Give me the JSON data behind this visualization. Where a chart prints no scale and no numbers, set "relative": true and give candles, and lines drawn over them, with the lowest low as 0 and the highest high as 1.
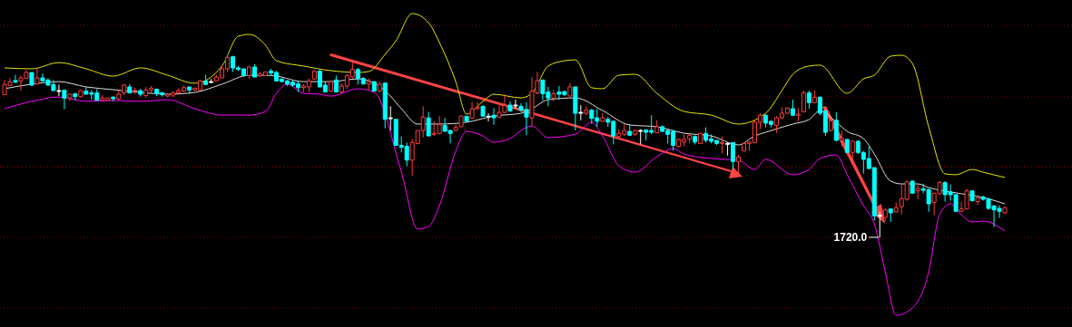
{
  "chart_data": {
    "type": "candlestick",
    "relative": true,
    "categories": [
      null,
      null,
      null,
      null,
      null,
      null,
      null,
      null,
      null,
      null,
      null,
      null,
      null,
      null,
      null,
      null,
      null,
      null,
      null,
      null,
      null,
      null,
      null,
      null,
      null,
      null,
      null,
      null,
      null,
      null,
      null,
      null,
      null,
      null,
      null,
      null,
      null,
      null,
      null,
      null,
      null,
      null,
      null,
      null,
      null,
      null,
      null,
      null,
      null,
      null,
      null,
      null,
      null,
      null,
      null,
      null,
      null,
      null,
      null,
      null,
      null,
      null,
      null,
      null,
      null,
      null,
      null,
      null,
      null,
      null,
      null,
      null,
      null,
      null,
      null,
      null,
      null,
      null,
      null,
      null,
      null,
      null,
      null,
      null,
      null,
      null,
      null,
      null,
      null,
      null,
      null,
      null,
      null,
      null,
      null,
      null,
      null,
      null,
      null,
      null,
      null,
      null,
      null,
      null,
      null,
      null,
      null,
      null,
      null,
      null,
      null,
      null,
      null,
      null,
      null,
      null,
      null,
      null,
      null,
      null,
      null,
      null,
      null,
      null,
      null,
      null,
      null,
      null,
      null,
      null,
      null,
      null,
      null,
      null,
      null,
      null,
      null,
      null,
      null,
      null,
      null,
      null,
      null,
      null,
      null,
      null,
      null,
      null,
      null,
      null,
      null,
      null,
      null,
      null,
      null,
      null,
      null,
      null,
      null,
      null,
      null,
      null,
      null,
      null,
      null,
      null,
      null,
      null,
      null,
      null,
      null,
      null,
      null,
      null,
      null,
      null,
      null,
      null,
      null,
      null,
      null,
      null,
      null,
      null,
      null
    ],
    "ohlc": [
      [
        0.78,
        0.86,
        0.78,
        0.835
      ],
      [
        0.83,
        0.87,
        0.83,
        0.85
      ],
      [
        0.857,
        0.888,
        0.843,
        0.848
      ],
      [
        0.855,
        0.884,
        0.802,
        0.871
      ],
      [
        0.868,
        0.914,
        0.868,
        0.901
      ],
      [
        0.901,
        0.901,
        0.827,
        0.832
      ],
      [
        0.838,
        0.921,
        0.838,
        0.871
      ],
      [
        0.871,
        0.896,
        0.851,
        0.855
      ],
      [
        0.86,
        0.868,
        0.827,
        0.832
      ],
      [
        0.835,
        0.86,
        0.802,
        0.802
      ],
      [
        0.802,
        0.835,
        0.772,
        0.802
      ],
      [
        0.805,
        0.805,
        0.7,
        0.761
      ],
      [
        0.761,
        0.785,
        0.744,
        0.782
      ],
      [
        0.785,
        0.789,
        0.749,
        0.769
      ],
      [
        0.769,
        0.805,
        0.766,
        0.802
      ],
      [
        0.799,
        0.822,
        0.782,
        0.782
      ],
      [
        0.789,
        0.805,
        0.753,
        0.782
      ],
      [
        0.789,
        0.81,
        0.749,
        0.749
      ],
      [
        0.749,
        0.777,
        0.749,
        0.761
      ],
      [
        0.749,
        0.761,
        0.749,
        0.761
      ],
      [
        0.766,
        0.772,
        0.744,
        0.757
      ],
      [
        0.757,
        0.805,
        0.749,
        0.782
      ],
      [
        0.789,
        0.838,
        0.777,
        0.832
      ],
      [
        0.822,
        0.838,
        0.789,
        0.789
      ],
      [
        0.799,
        0.818,
        0.782,
        0.805
      ],
      [
        0.802,
        0.81,
        0.769,
        0.782
      ],
      [
        0.774,
        0.822,
        0.766,
        0.805
      ],
      [
        0.805,
        0.827,
        0.785,
        0.815
      ],
      [
        0.81,
        0.81,
        0.772,
        0.785
      ],
      [
        0.79,
        0.794,
        0.769,
        0.78
      ],
      [
        0.772,
        0.789,
        0.766,
        0.782
      ],
      [
        0.777,
        0.799,
        0.766,
        0.789
      ],
      [
        0.789,
        0.815,
        0.785,
        0.802
      ],
      [
        0.799,
        0.83,
        0.794,
        0.818
      ],
      [
        0.822,
        0.822,
        0.785,
        0.805
      ],
      [
        0.805,
        0.818,
        0.799,
        0.815
      ],
      [
        0.805,
        0.86,
        0.805,
        0.855
      ],
      [
        0.855,
        0.888,
        0.832,
        0.835
      ],
      [
        0.851,
        0.865,
        0.843,
        0.851
      ],
      [
        0.855,
        0.888,
        0.855,
        0.876
      ],
      [
        0.871,
        0.942,
        0.871,
        0.921
      ],
      [
        0.921,
        1,
        0.904,
        0.983
      ],
      [
        0.987,
        0.992,
        0.904,
        0.926
      ],
      [
        0.926,
        0.937,
        0.909,
        0.918
      ],
      [
        0.921,
        0.921,
        0.876,
        0.884
      ],
      [
        0.884,
        0.937,
        0.868,
        0.931
      ],
      [
        0.931,
        0.947,
        0.876,
        0.876
      ],
      [
        0.884,
        0.904,
        0.876,
        0.893
      ],
      [
        0.884,
        0.904,
        0.884,
        0.904
      ],
      [
        0.909,
        0.921,
        0.884,
        0.898
      ],
      [
        0.901,
        0.909,
        0.851,
        0.855
      ],
      [
        0.865,
        0.868,
        0.848,
        0.851
      ],
      [
        0.855,
        0.86,
        0.827,
        0.838
      ],
      [
        0.848,
        0.86,
        0.822,
        0.832
      ],
      [
        0.838,
        0.851,
        0.794,
        0.818
      ],
      [
        0.818,
        0.838,
        0.794,
        0.827
      ],
      [
        0.822,
        0.868,
        0.794,
        0.855
      ],
      [
        0.865,
        0.914,
        0.86,
        0.909
      ],
      [
        0.909,
        0.914,
        0.822,
        0.822
      ],
      [
        0.832,
        0.851,
        0.794,
        0.794
      ],
      [
        0.799,
        0.86,
        0.794,
        0.851
      ],
      [
        0.86,
        0.884,
        0.794,
        0.794
      ],
      [
        0.794,
        0.843,
        0.785,
        0.827
      ],
      [
        0.827,
        0.893,
        0.81,
        0.884
      ],
      [
        0.876,
        0.959,
        0.868,
        0.917
      ],
      [
        0.917,
        0.926,
        0.835,
        0.868
      ],
      [
        0.868,
        0.876,
        0.835,
        0.838
      ],
      [
        0.838,
        0.868,
        0.805,
        0.851
      ],
      [
        0.851,
        0.851,
        0.799,
        0.799
      ],
      [
        0.799,
        0.851,
        0.794,
        0.838
      ],
      [
        0.843,
        0.848,
        0.596,
        0.645
      ],
      [
        0.653,
        0.716,
        0.584,
        0.653
      ],
      [
        0.645,
        0.645,
        0.502,
        0.502
      ],
      [
        0.502,
        0.551,
        0.464,
        0.492
      ],
      [
        0.497,
        0.518,
        0.389,
        0.422
      ],
      [
        0.422,
        0.538,
        0.337,
        0.518
      ],
      [
        0.513,
        0.584,
        0.508,
        0.584
      ],
      [
        0.584,
        0.716,
        0.546,
        0.657
      ],
      [
        0.653,
        0.686,
        0.554,
        0.554
      ],
      [
        0.563,
        0.634,
        0.554,
        0.568
      ],
      [
        0.568,
        0.662,
        0.563,
        0.617
      ],
      [
        0.612,
        0.653,
        0.579,
        0.579
      ],
      [
        0.584,
        0.587,
        0.513,
        0.568
      ],
      [
        0.584,
        0.617,
        0.579,
        0.601
      ],
      [
        0.604,
        0.667,
        0.604,
        0.662
      ],
      [
        0.662,
        0.662,
        0.634,
        0.634
      ],
      [
        0.65,
        0.739,
        0.65,
        0.703
      ],
      [
        0.703,
        0.739,
        0.695,
        0.711
      ],
      [
        0.716,
        0.72,
        0.662,
        0.662
      ],
      [
        0.662,
        0.678,
        0.634,
        0.662
      ],
      [
        0.667,
        0.706,
        0.615,
        0.653
      ],
      [
        0.657,
        0.72,
        0.653,
        0.683
      ],
      [
        0.683,
        0.782,
        0.678,
        0.72
      ],
      [
        0.723,
        0.744,
        0.686,
        0.69
      ],
      [
        0.723,
        0.753,
        0.703,
        0.723
      ],
      [
        0.716,
        0.733,
        0.686,
        0.695
      ],
      [
        0.699,
        0.739,
        0.558,
        0.657
      ],
      [
        0.653,
        0.876,
        0.612,
        0.799
      ],
      [
        0.789,
        0.904,
        0.782,
        0.855
      ],
      [
        0.86,
        0.86,
        0.749,
        0.785
      ],
      [
        0.794,
        0.822,
        0.716,
        0.761
      ],
      [
        0.761,
        0.805,
        0.744,
        0.785
      ],
      [
        0.794,
        0.827,
        0.753,
        0.782
      ],
      [
        0.797,
        0.799,
        0.772,
        0.78
      ],
      [
        0.772,
        0.843,
        0.772,
        0.822
      ],
      [
        0.822,
        0.822,
        0.584,
        0.678
      ],
      [
        0.683,
        0.723,
        0.64,
        0.683
      ],
      [
        0.678,
        0.716,
        0.667,
        0.695
      ],
      [
        0.695,
        0.703,
        0.62,
        0.65
      ],
      [
        0.653,
        0.703,
        0.604,
        0.634
      ],
      [
        0.634,
        0.678,
        0.629,
        0.653
      ],
      [
        0.645,
        0.657,
        0.604,
        0.629
      ],
      [
        0.634,
        0.637,
        0.508,
        0.554
      ],
      [
        0.551,
        0.591,
        0.538,
        0.568
      ],
      [
        0.563,
        0.62,
        0.554,
        0.584
      ],
      [
        0.579,
        0.617,
        0.554,
        0.558
      ],
      [
        0.563,
        0.587,
        0.554,
        0.584
      ],
      [
        0.584,
        0.591,
        0.508,
        0.584
      ],
      [
        0.587,
        0.591,
        0.53,
        0.574
      ],
      [
        0.584,
        0.667,
        0.563,
        0.574
      ],
      [
        0.571,
        0.64,
        0.571,
        0.604
      ],
      [
        0.604,
        0.612,
        0.574,
        0.579
      ],
      [
        0.584,
        0.587,
        0.513,
        0.563
      ],
      [
        0.579,
        0.587,
        0.475,
        0.502
      ],
      [
        0.497,
        0.541,
        0.492,
        0.535
      ],
      [
        0.521,
        0.563,
        0.497,
        0.535
      ],
      [
        0.538,
        0.563,
        0.513,
        0.558
      ],
      [
        0.551,
        0.558,
        0.508,
        0.521
      ],
      [
        0.513,
        0.571,
        0.513,
        0.568
      ],
      [
        0.568,
        0.601,
        0.518,
        0.53
      ],
      [
        0.538,
        0.563,
        0.513,
        0.525
      ],
      [
        0.53,
        0.53,
        0.505,
        0.513
      ],
      [
        0.513,
        0.551,
        0.459,
        0.518
      ],
      [
        0.513,
        0.518,
        0.447,
        0.513
      ],
      [
        0.518,
        0.518,
        0.373,
        0.414
      ],
      [
        0.414,
        0.452,
        0.34,
        0.439
      ],
      [
        0.472,
        0.521,
        0.472,
        0.513
      ],
      [
        0.513,
        0.525,
        0.472,
        0.521
      ],
      [
        0.518,
        0.64,
        0.513,
        0.629
      ],
      [
        0.629,
        0.678,
        0.591,
        0.667
      ],
      [
        0.667,
        0.673,
        0.601,
        0.624
      ],
      [
        0.634,
        0.64,
        0.601,
        0.617
      ],
      [
        0.612,
        0.662,
        0.571,
        0.653
      ],
      [
        0.653,
        0.711,
        0.645,
        0.678
      ],
      [
        0.678,
        0.711,
        0.673,
        0.706
      ],
      [
        0.703,
        0.752,
        0.662,
        0.667
      ],
      [
        0.667,
        0.706,
        0.634,
        0.673
      ],
      [
        0.686,
        0.802,
        0.683,
        0.789
      ],
      [
        0.789,
        0.802,
        0.703,
        0.736
      ],
      [
        0.736,
        0.802,
        0.733,
        0.766
      ],
      [
        0.766,
        0.769,
        0.667,
        0.678
      ],
      [
        0.69,
        0.7,
        0.554,
        0.574
      ],
      [
        0.584,
        0.645,
        0.579,
        0.637
      ],
      [
        0.64,
        0.683,
        0.525,
        0.53
      ],
      [
        0.53,
        0.584,
        0.497,
        0.541
      ],
      [
        0.535,
        0.538,
        0.459,
        0.464
      ],
      [
        0.464,
        0.53,
        0.422,
        0.525
      ],
      [
        0.525,
        0.53,
        0.455,
        0.464
      ],
      [
        0.464,
        0.472,
        0.348,
        0.426
      ],
      [
        0.431,
        0.497,
        0.373,
        0.376
      ],
      [
        0.381,
        0.381,
        0.092,
        0.117
      ],
      [
        0.12,
        0.14,
        0,
        0.12
      ],
      [
        0.109,
        0.158,
        0.089,
        0.15
      ],
      [
        0.155,
        0.158,
        0.084,
        0.134
      ],
      [
        0.139,
        0.191,
        0.134,
        0.162
      ],
      [
        0.167,
        0.29,
        0.125,
        0.211
      ],
      [
        0.208,
        0.31,
        0.2,
        0.303
      ],
      [
        0.307,
        0.31,
        0.241,
        0.241
      ],
      [
        0.254,
        0.294,
        0.208,
        0.266
      ],
      [
        0.266,
        0.294,
        0.241,
        0.257
      ],
      [
        0.261,
        0.266,
        0.139,
        0.183
      ],
      [
        0.191,
        0.244,
        0.122,
        0.241
      ],
      [
        0.238,
        0.307,
        0.233,
        0.299
      ],
      [
        0.299,
        0.307,
        0.195,
        0.233
      ],
      [
        0.249,
        0.29,
        0.2,
        0.233
      ],
      [
        0.233,
        0.238,
        0.139,
        0.142
      ],
      [
        0.142,
        0.195,
        0.139,
        0.155
      ],
      [
        0.155,
        0.266,
        0.155,
        0.254
      ],
      [
        0.254,
        0.257,
        0.195,
        0.2
      ],
      [
        0.195,
        0.228,
        0.175,
        0.216
      ],
      [
        0.221,
        0.228,
        0.2,
        0.208
      ],
      [
        0.211,
        0.216,
        0.15,
        0.158
      ],
      [
        0.172,
        0.175,
        0.056,
        0.15
      ],
      [
        0.158,
        0.175,
        0.106,
        0.142
      ],
      [
        0.134,
        0.167,
        0.129,
        0.162
      ]
    ],
    "series": [
      {
        "type": "line",
        "color": "#e6e600",
        "values": [
          0.926,
          null,
          null,
          null,
          null,
          0.921,
          null,
          null,
          null,
          null,
          0.955,
          null,
          null,
          null,
          null,
          0.921,
          null,
          null,
          null,
          null,
          0.881,
          null,
          null,
          null,
          null,
          0.926,
          null,
          null,
          null,
          null,
          0.886,
          null,
          null,
          null,
          null,
          0.842,
          null,
          null,
          null,
          null,
          0.936,
          null,
          null,
          1.099,
          null,
          1.109,
          null,
          null,
          1.05,
          null,
          0.965,
          null,
          null,
          null,
          null,
          0.936,
          null,
          null,
          null,
          null,
          0.911,
          null,
          null,
          null,
          null,
          0.901,
          null,
          0.906,
          null,
          null,
          1.0,
          null,
          1.074,
          null,
          null,
          1.223,
          null,
          null,
          1.173,
          null,
          1.064,
          null,
          null,
          0.851,
          null,
          0.673,
          null,
          null,
          0.743,
          null,
          0.782,
          null,
          null,
          null,
          null,
          0.762,
          null,
          0.787,
          null,
          null,
          0.936,
          null,
          null,
          0.965,
          null,
          0.97,
          null,
          null,
          0.817,
          null,
          0.812,
          null,
          null,
          0.886,
          null,
          null,
          0.891,
          null,
          null,
          null,
          0.787,
          null,
          null,
          null,
          null,
          0.688,
          null,
          null,
          null,
          null,
          0.668,
          null,
          null,
          null,
          null,
          0.619,
          null,
          null,
          null,
          null,
          0.678,
          null,
          null,
          0.802,
          null,
          0.891,
          null,
          null,
          0.936,
          null,
          0.941,
          null,
          null,
          null,
          null,
          0.787,
          null,
          null,
          0.866,
          null,
          0.886,
          null,
          null,
          0.99,
          null,
          0.995,
          null,
          0.95,
          null,
          null,
          0.604,
          null,
          null,
          0.347,
          null,
          0.342,
          null,
          null,
          0.371,
          null,
          0.356,
          null,
          null,
          null,
          0.327
        ]
      },
      {
        "type": "line",
        "color": "#dddddd",
        "values": [
          0.812,
          null,
          null,
          null,
          null,
          0.837,
          null,
          null,
          null,
          null,
          0.851,
          null,
          null,
          null,
          null,
          0.822,
          null,
          null,
          null,
          null,
          0.807,
          null,
          null,
          null,
          null,
          0.792,
          null,
          null,
          null,
          null,
          0.782,
          null,
          null,
          null,
          null,
          0.792,
          null,
          null,
          null,
          null,
          0.837,
          null,
          null,
          null,
          null,
          0.886,
          null,
          null,
          0.886,
          null,
          0.881,
          null,
          null,
          null,
          null,
          0.851,
          null,
          null,
          null,
          null,
          0.851,
          null,
          null,
          null,
          null,
          0.866,
          null,
          null,
          null,
          null,
          0.802,
          null,
          null,
          0.703,
          null,
          null,
          0.619,
          null,
          null,
          null,
          0.619,
          null,
          null,
          null,
          null,
          0.629,
          null,
          null,
          null,
          null,
          0.663,
          null,
          null,
          null,
          null,
          0.678,
          null,
          0.703,
          null,
          null,
          0.752,
          null,
          null,
          null,
          null,
          0.762,
          null,
          null,
          null,
          null,
          0.693,
          null,
          null,
          null,
          null,
          0.614,
          null,
          null,
          null,
          null,
          0.604,
          null,
          null,
          null,
          null,
          0.569,
          null,
          null,
          null,
          null,
          0.554,
          null,
          null,
          null,
          null,
          0.505,
          null,
          null,
          0.554,
          null,
          0.574,
          null,
          null,
          null,
          null,
          0.619,
          null,
          null,
          0.644,
          null,
          0.693,
          null,
          null,
          0.629,
          null,
          0.579,
          null,
          null,
          0.54,
          null,
          0.455,
          null,
          null,
          0.307,
          null,
          0.292,
          null,
          null,
          0.292,
          null,
          0.272,
          null,
          null,
          null,
          null,
          0.243,
          null,
          null,
          null,
          null,
          0.218,
          null,
          null,
          null,
          0.183
        ]
      },
      {
        "type": "line",
        "color": "#ff00ff",
        "values": [
          0.703,
          null,
          null,
          null,
          null,
          0.743,
          null,
          null,
          null,
          null,
          0.767,
          null,
          null,
          null,
          null,
          0.743,
          null,
          null,
          null,
          null,
          0.748,
          null,
          null,
          null,
          null,
          0.743,
          null,
          null,
          null,
          null,
          0.752,
          null,
          null,
          null,
          null,
          0.703,
          null,
          null,
          null,
          null,
          0.668,
          null,
          null,
          null,
          null,
          0.668,
          null,
          null,
          0.688,
          null,
          0.787,
          null,
          0.837,
          null,
          null,
          0.787,
          null,
          null,
          0.782,
          null,
          0.772,
          null,
          null,
          null,
          null,
          0.812,
          null,
          null,
          0.792,
          null,
          null,
          null,
          null,
          0.356,
          null,
          null,
          0.045,
          null,
          0.059,
          null,
          0.173,
          null,
          null,
          0.47,
          null,
          0.579,
          null,
          null,
          0.554,
          null,
          0.52,
          null,
          null,
          0.54,
          null,
          0.584,
          null,
          0.609,
          null,
          null,
          0.545,
          null,
          null,
          null,
          null,
          0.564,
          null,
          null,
          0.629,
          null,
          0.554,
          null,
          null,
          0.391,
          null,
          null,
          0.356,
          null,
          null,
          null,
          0.441,
          null,
          null,
          0.485,
          null,
          0.455,
          null,
          null,
          null,
          null,
          0.431,
          null,
          null,
          null,
          null,
          0.421,
          null,
          null,
          0.371,
          null,
          0.426,
          null,
          null,
          null,
          null,
          0.342,
          null,
          null,
          0.371,
          null,
          0.431,
          null,
          null,
          0.45,
          null,
          0.342,
          null,
          null,
          0.173,
          null,
          0.074,
          null,
          -0.188,
          null,
          -0.426,
          null,
          null,
          -0.386,
          null,
          null,
          -0.188,
          null,
          0.124,
          null,
          0.183,
          null,
          0.124,
          null,
          0.084,
          null,
          0.089,
          null,
          null,
          null,
          0.035
        ]
      }
    ],
    "ref_lines": [
      {
        "axis": "y",
        "value": 1.158,
        "color": "#7a0000",
        "line_style": "dotted"
      },
      {
        "axis": "y",
        "value": 0.767,
        "color": "#7a0000",
        "line_style": "dotted"
      },
      {
        "axis": "y",
        "value": 0.386,
        "color": "#b00000",
        "line_style": "dotted"
      },
      {
        "axis": "y",
        "value": 0,
        "color": "#7a0000",
        "line_style": "dotted"
      },
      {
        "axis": "y",
        "value": -0.386,
        "color": "#7a0000",
        "line_style": "dotted"
      }
    ],
    "annotations": [
      {
        "text": "1720.0",
        "y": 0
      }
    ]
  }
}
